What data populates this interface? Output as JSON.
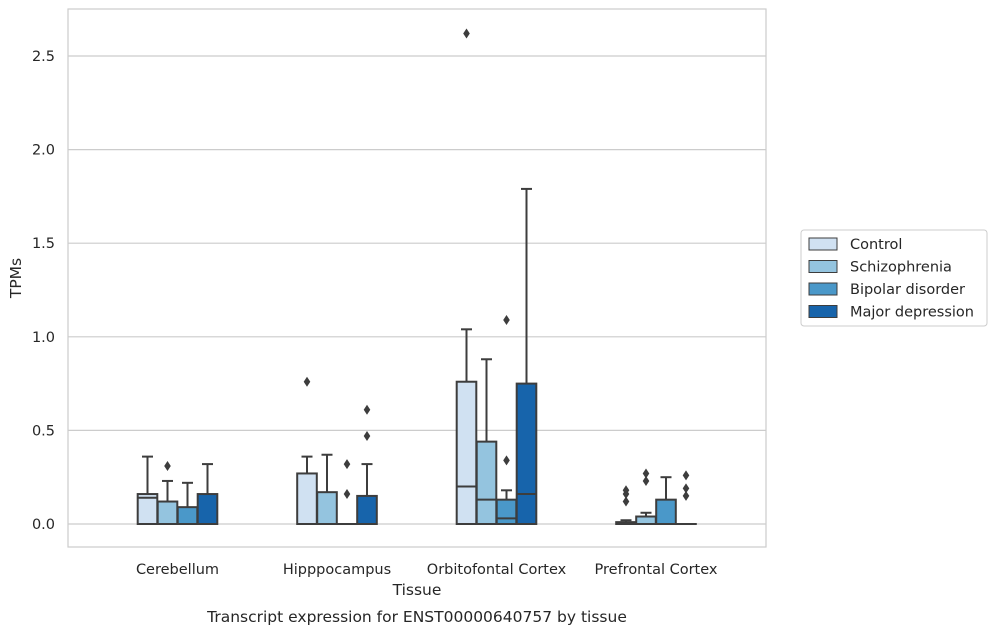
{
  "chart_data": {
    "type": "box",
    "xlabel": "Tissue",
    "ylabel": "TPMs",
    "caption": "Transcript expression for ENST00000640757 by tissue",
    "ylim": [
      -0.13,
      2.76
    ],
    "yticks": [
      0.0,
      0.5,
      1.0,
      1.5,
      2.0,
      2.5
    ],
    "ytick_labels": [
      "0.0",
      "0.5",
      "1.0",
      "1.5",
      "2.0",
      "2.5"
    ],
    "grid": "horizontal",
    "legend_position": "right",
    "categories": [
      "Cerebellum",
      "Hipppocampus",
      "Orbitofontal Cortex",
      "Prefrontal Cortex"
    ],
    "series": [
      {
        "name": "Control",
        "color": "#d0e1f2",
        "boxes": [
          {
            "min": 0.0,
            "q1": 0.0,
            "median": 0.14,
            "q3": 0.16,
            "max": 0.36,
            "outliers": []
          },
          {
            "min": 0.0,
            "q1": 0.0,
            "median": 0.0,
            "q3": 0.27,
            "max": 0.36,
            "outliers": [
              0.76
            ]
          },
          {
            "min": 0.0,
            "q1": 0.0,
            "median": 0.2,
            "q3": 0.76,
            "max": 1.04,
            "outliers": [
              2.62
            ]
          },
          {
            "min": 0.0,
            "q1": 0.0,
            "median": 0.0,
            "q3": 0.01,
            "max": 0.02,
            "outliers": [
              0.12,
              0.16,
              0.18
            ]
          }
        ]
      },
      {
        "name": "Schizophrenia",
        "color": "#94c4df",
        "boxes": [
          {
            "min": 0.0,
            "q1": 0.0,
            "median": 0.0,
            "q3": 0.12,
            "max": 0.23,
            "outliers": [
              0.31
            ]
          },
          {
            "min": 0.0,
            "q1": 0.0,
            "median": 0.0,
            "q3": 0.17,
            "max": 0.37,
            "outliers": []
          },
          {
            "min": 0.0,
            "q1": 0.0,
            "median": 0.13,
            "q3": 0.44,
            "max": 0.88,
            "outliers": []
          },
          {
            "min": 0.0,
            "q1": 0.0,
            "median": 0.0,
            "q3": 0.04,
            "max": 0.06,
            "outliers": [
              0.23,
              0.27
            ]
          }
        ]
      },
      {
        "name": "Bipolar disorder",
        "color": "#4a98c9",
        "boxes": [
          {
            "min": 0.0,
            "q1": 0.0,
            "median": 0.0,
            "q3": 0.09,
            "max": 0.22,
            "outliers": []
          },
          {
            "min": 0.0,
            "q1": 0.0,
            "median": 0.0,
            "q3": 0.0,
            "max": 0.0,
            "outliers": [
              0.16,
              0.32
            ]
          },
          {
            "min": 0.0,
            "q1": 0.0,
            "median": 0.03,
            "q3": 0.13,
            "max": 0.18,
            "outliers": [
              0.34,
              1.09
            ]
          },
          {
            "min": 0.0,
            "q1": 0.0,
            "median": 0.0,
            "q3": 0.13,
            "max": 0.25,
            "outliers": []
          }
        ]
      },
      {
        "name": "Major depression",
        "color": "#1764ab",
        "boxes": [
          {
            "min": 0.0,
            "q1": 0.0,
            "median": 0.0,
            "q3": 0.16,
            "max": 0.32,
            "outliers": []
          },
          {
            "min": 0.0,
            "q1": 0.0,
            "median": 0.0,
            "q3": 0.15,
            "max": 0.32,
            "outliers": [
              0.47,
              0.61
            ]
          },
          {
            "min": 0.0,
            "q1": 0.0,
            "median": 0.16,
            "q3": 0.75,
            "max": 1.79,
            "outliers": []
          },
          {
            "min": 0.0,
            "q1": 0.0,
            "median": 0.0,
            "q3": 0.0,
            "max": 0.0,
            "outliers": [
              0.15,
              0.19,
              0.26
            ]
          }
        ]
      }
    ]
  }
}
